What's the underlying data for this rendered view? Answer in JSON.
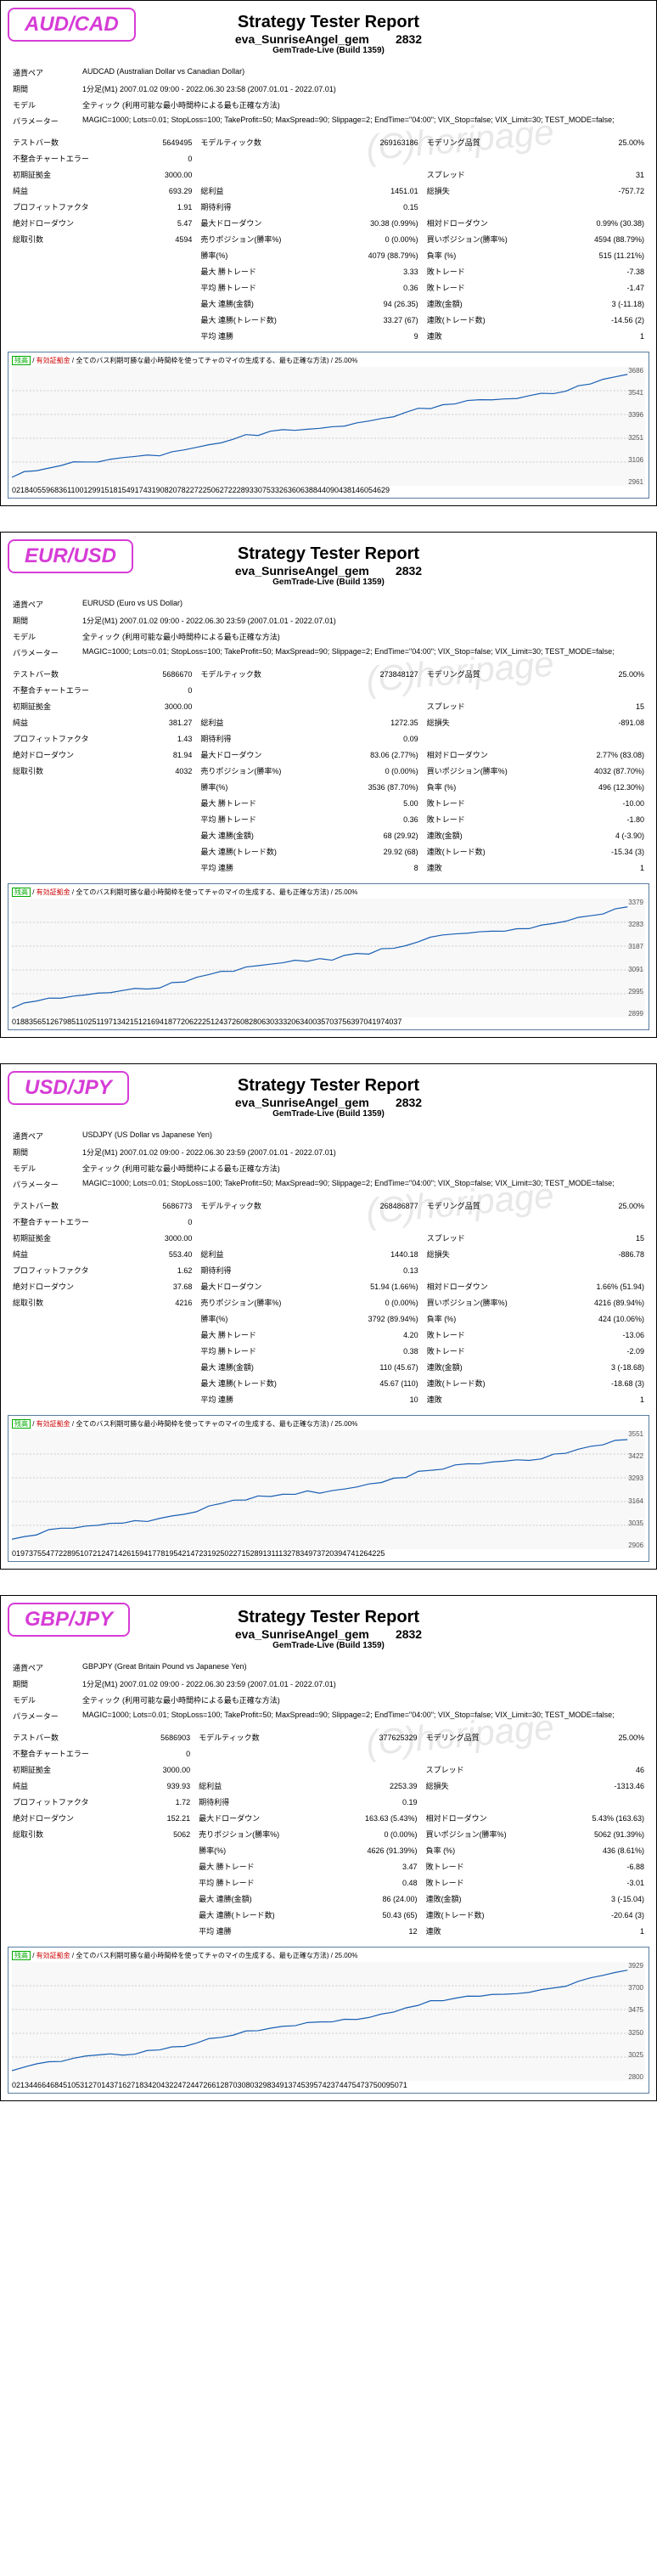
{
  "watermark": "(C)horipage",
  "title": "Strategy Tester Report",
  "subtitle_prefix": "eva_SunriseAngel_gem",
  "subtitle_suffix": "2832",
  "server": "GemTrade-Live (Build 1359)",
  "pair_color": {
    "AUDCAD": "#d63cd6",
    "EURUSD": "#d63cd6",
    "USDJPY": "#d63cd6",
    "GBPJPY": "#d63cd6"
  },
  "labels": {
    "pair": "通貨ペア",
    "period": "期間",
    "model": "モデル",
    "params": "パラメーター",
    "bars": "テストバー数",
    "ticks": "モデルティック数",
    "quality": "モデリング品質",
    "mismatch": "不整合チャートエラー",
    "deposit": "初期証拠金",
    "spread": "スプレッド",
    "netprofit": "純益",
    "gross_profit": "総利益",
    "gross_loss": "総損失",
    "pf": "プロフィットファクタ",
    "ep": "期待利得",
    "absdd": "絶対ドローダウン",
    "maxdd": "最大ドローダウン",
    "reldd": "相対ドローダウン",
    "total_trades": "総取引数",
    "short_pos": "売りポジション(勝率%)",
    "long_pos": "買いポジション(勝率%)",
    "win_trades": "勝率(%)",
    "loss_trades": "負率 (%)",
    "max_win": "最大 勝トレード",
    "max_loss": "敗トレード",
    "max_consec_win": "最大 連勝(金額)",
    "max_consec_loss": "連敗(金額)",
    "max_consec_profit": "最大 連勝(トレード数)",
    "max_consec_lossn": "連敗(トレード数)",
    "avg_win": "平均 勝トレード",
    "avg_loss": "敗トレード",
    "avg_consec_win": "平均 連勝",
    "avg_consec_loss": "連敗"
  },
  "reports": [
    {
      "pair_label": "AUD/CAD",
      "pair": "AUDCAD (Australian Dollar vs Canadian Dollar)",
      "period": "1分足(M1) 2007.01.02 09:00 - 2022.06.30 23:58 (2007.01.01 - 2022.07.01)",
      "model": "全ティック (利用可能な最小時間枠による最も正確な方法)",
      "params": "MAGIC=1000; Lots=0.01; StopLoss=100; TakeProfit=50; MaxSpread=90; Slippage=2; EndTime=\"04:00\"; VIX_Stop=false; VIX_Limit=30; TEST_MODE=false;",
      "bars": "5649495",
      "ticks": "269163186",
      "quality": "25.00%",
      "mismatch": "0",
      "deposit": "3000.00",
      "spread": "31",
      "netprofit": "693.29",
      "gross_profit": "1451.01",
      "gross_loss": "-757.72",
      "pf": "1.91",
      "ep": "0.15",
      "absdd": "5.47",
      "maxdd": "30.38 (0.99%)",
      "reldd": "0.99% (30.38)",
      "total_trades": "4594",
      "short_pos": "0 (0.00%)",
      "long_pos": "4594 (88.79%)",
      "win_trades": "4079 (88.79%)",
      "loss_trades": "515 (11.21%)",
      "max_win": "3.33",
      "max_loss": "-7.38",
      "avg_win": "0.36",
      "avg_loss": "-1.47",
      "max_consec_win": "94 (26.35)",
      "max_consec_loss": "3 (-11.18)",
      "max_consec_profit": "33.27 (67)",
      "max_consec_lossn": "-14.56 (2)",
      "avg_consec_win": "9",
      "avg_consec_loss": "1",
      "ylabels": [
        "3686",
        "3541",
        "3396",
        "3251",
        "3106",
        "2961"
      ],
      "xlabels": [
        "0",
        "218",
        "405",
        "596",
        "836",
        "1100",
        "1299",
        "1518",
        "1549",
        "1743",
        "1908",
        "2078",
        "2272",
        "2506",
        "2722",
        "2893",
        "3075",
        "3326",
        "3606",
        "3884",
        "4090",
        "4381",
        "4605",
        "4629"
      ]
    },
    {
      "pair_label": "EUR/USD",
      "pair": "EURUSD (Euro vs US Dollar)",
      "period": "1分足(M1) 2007.01.02 09:00 - 2022.06.30 23:59 (2007.01.01 - 2022.07.01)",
      "model": "全ティック (利用可能な最小時間枠による最も正確な方法)",
      "params": "MAGIC=1000; Lots=0.01; StopLoss=100; TakeProfit=50; MaxSpread=90; Slippage=2; EndTime=\"04:00\"; VIX_Stop=false; VIX_Limit=30; TEST_MODE=false;",
      "bars": "5686670",
      "ticks": "273848127",
      "quality": "25.00%",
      "mismatch": "0",
      "deposit": "3000.00",
      "spread": "15",
      "netprofit": "381.27",
      "gross_profit": "1272.35",
      "gross_loss": "-891.08",
      "pf": "1.43",
      "ep": "0.09",
      "absdd": "81.94",
      "maxdd": "83.06 (2.77%)",
      "reldd": "2.77% (83.08)",
      "total_trades": "4032",
      "short_pos": "0 (0.00%)",
      "long_pos": "4032 (87.70%)",
      "win_trades": "3536 (87.70%)",
      "loss_trades": "496 (12.30%)",
      "max_win": "5.00",
      "max_loss": "-10.00",
      "avg_win": "0.36",
      "avg_loss": "-1.80",
      "max_consec_win": "68 (29.92)",
      "max_consec_loss": "4 (-3.90)",
      "max_consec_profit": "29.92 (68)",
      "max_consec_lossn": "-15.34 (3)",
      "avg_consec_win": "8",
      "avg_consec_loss": "1",
      "ylabels": [
        "3379",
        "3283",
        "3187",
        "3091",
        "2995",
        "2899"
      ],
      "xlabels": [
        "0",
        "188",
        "356",
        "512",
        "679",
        "851",
        "1025",
        "1197",
        "1342",
        "1512",
        "1694",
        "1877",
        "2062",
        "2251",
        "2437",
        "2608",
        "2806",
        "3033",
        "3206",
        "3400",
        "3570",
        "3756",
        "3970",
        "4197",
        "4037"
      ]
    },
    {
      "pair_label": "USD/JPY",
      "pair": "USDJPY (US Dollar vs Japanese Yen)",
      "period": "1分足(M1) 2007.01.02 09:00 - 2022.06.30 23:59 (2007.01.01 - 2022.07.01)",
      "model": "全ティック (利用可能な最小時間枠による最も正確な方法)",
      "params": "MAGIC=1000; Lots=0.01; StopLoss=100; TakeProfit=50; MaxSpread=90; Slippage=2; EndTime=\"04:00\"; VIX_Stop=false; VIX_Limit=30; TEST_MODE=false;",
      "bars": "5686773",
      "ticks": "268486877",
      "quality": "25.00%",
      "mismatch": "0",
      "deposit": "3000.00",
      "spread": "15",
      "netprofit": "553.40",
      "gross_profit": "1440.18",
      "gross_loss": "-886.78",
      "pf": "1.62",
      "ep": "0.13",
      "absdd": "37.68",
      "maxdd": "51.94 (1.66%)",
      "reldd": "1.66% (51.94)",
      "total_trades": "4216",
      "short_pos": "0 (0.00%)",
      "long_pos": "4216 (89.94%)",
      "win_trades": "3792 (89.94%)",
      "loss_trades": "424 (10.06%)",
      "max_win": "4.20",
      "max_loss": "-13.06",
      "avg_win": "0.38",
      "avg_loss": "-2.09",
      "max_consec_win": "110 (45.67)",
      "max_consec_loss": "3 (-18.68)",
      "max_consec_profit": "45.67 (110)",
      "max_consec_lossn": "-18.68 (3)",
      "avg_consec_win": "10",
      "avg_consec_loss": "1",
      "ylabels": [
        "3551",
        "3422",
        "3293",
        "3164",
        "3035",
        "2906"
      ],
      "xlabels": [
        "0",
        "197",
        "375",
        "547",
        "722",
        "895",
        "1072",
        "1247",
        "1426",
        "1594",
        "1778",
        "1954",
        "2147",
        "2319",
        "2502",
        "2715",
        "2891",
        "3111",
        "3278",
        "3497",
        "3720",
        "3947",
        "4126",
        "4225"
      ]
    },
    {
      "pair_label": "GBP/JPY",
      "pair": "GBPJPY (Great Britain Pound vs Japanese Yen)",
      "period": "1分足(M1) 2007.01.02 09:00 - 2022.06.30 23:59 (2007.01.01 - 2022.07.01)",
      "model": "全ティック (利用可能な最小時間枠による最も正確な方法)",
      "params": "MAGIC=1000; Lots=0.01; StopLoss=100; TakeProfit=50; MaxSpread=90; Slippage=2; EndTime=\"04:00\"; VIX_Stop=false; VIX_Limit=30; TEST_MODE=false;",
      "bars": "5686903",
      "ticks": "377625329",
      "quality": "25.00%",
      "mismatch": "0",
      "deposit": "3000.00",
      "spread": "46",
      "netprofit": "939.93",
      "gross_profit": "2253.39",
      "gross_loss": "-1313.46",
      "pf": "1.72",
      "ep": "0.19",
      "absdd": "152.21",
      "maxdd": "163.63 (5.43%)",
      "reldd": "5.43% (163.63)",
      "total_trades": "5062",
      "short_pos": "0 (0.00%)",
      "long_pos": "5062 (91.39%)",
      "win_trades": "4626 (91.39%)",
      "loss_trades": "436 (8.61%)",
      "max_win": "3.47",
      "max_loss": "-6.88",
      "avg_win": "0.48",
      "avg_loss": "-3.01",
      "max_consec_win": "86 (24.00)",
      "max_consec_loss": "3 (-15.04)",
      "max_consec_profit": "50.43 (65)",
      "max_consec_lossn": "-20.64 (3)",
      "avg_consec_win": "12",
      "avg_consec_loss": "1",
      "ylabels": [
        "3929",
        "3700",
        "3475",
        "3250",
        "3025",
        "2800"
      ],
      "xlabels": [
        "0",
        "213",
        "446",
        "646",
        "845",
        "1053",
        "1270",
        "1437",
        "1627",
        "1834",
        "2043",
        "2247",
        "2447",
        "2661",
        "2870",
        "3080",
        "3298",
        "3491",
        "3745",
        "3957",
        "4237",
        "4475",
        "4737",
        "5009",
        "5071"
      ]
    }
  ],
  "chart_legend_text": "全てのバス利期可勝な最小時間枠を使ってチャのマイの生成する、最も正確な方法) / 25.00%",
  "chart_legend_badges": {
    "g": "残高",
    "r": "有効証拠金"
  }
}
